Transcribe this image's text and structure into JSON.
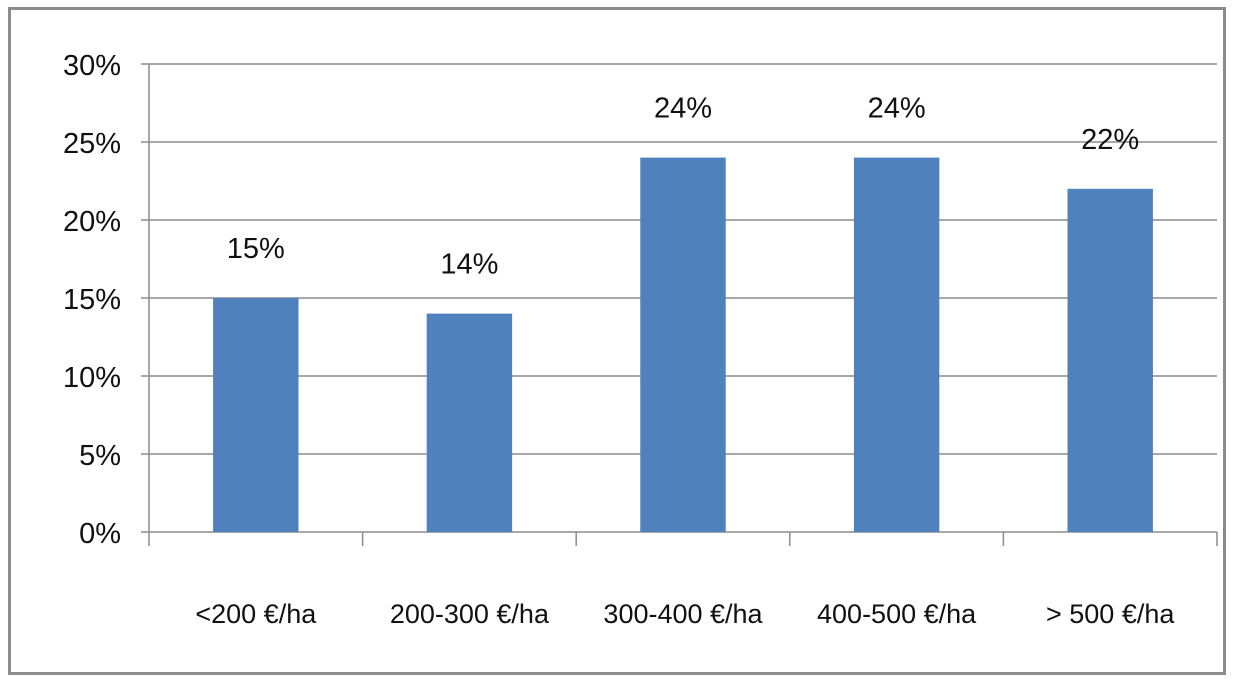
{
  "chart_data": {
    "type": "bar",
    "title": "",
    "xlabel": "",
    "ylabel": "",
    "categories": [
      "<200 €/ha",
      "200-300 €/ha",
      "300-400 €/ha",
      "400-500 €/ha",
      "> 500 €/ha"
    ],
    "values": [
      15,
      14,
      24,
      24,
      22
    ],
    "data_labels": [
      "15%",
      "14%",
      "24%",
      "24%",
      "22%"
    ],
    "ylim": [
      0,
      30
    ],
    "yticks": [
      0,
      5,
      10,
      15,
      20,
      25,
      30
    ],
    "ytick_labels": [
      "0%",
      "5%",
      "10%",
      "15%",
      "20%",
      "25%",
      "30%"
    ],
    "grid": true,
    "legend": "none",
    "bar_color": "#4f81bd",
    "grid_color": "#8c8c8c",
    "frame_color": "#8c8c8c"
  }
}
